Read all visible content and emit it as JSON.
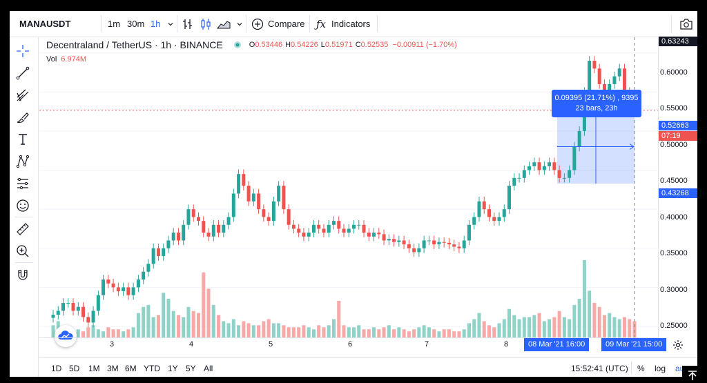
{
  "toolbar": {
    "symbol": "MANAUSDT",
    "intervals": [
      "1m",
      "30m",
      "1h"
    ],
    "active_interval": "1h",
    "compare_label": "Compare",
    "indicators_label": "Indicators",
    "icons": [
      "chevron-down-icon",
      "bar-chart-icon",
      "candles-icon",
      "area-chart-icon",
      "plus-circle-icon",
      "fx-icon",
      "camera-icon"
    ]
  },
  "legend": {
    "title": "Decentraland / TetherUS · 1h · BINANCE",
    "o_label": "O",
    "o": "0.53446",
    "h_label": "H",
    "h": "0.54226",
    "l_label": "L",
    "l": "0.51971",
    "c_label": "C",
    "c": "0.52535",
    "change": "−0.00911 (−1.70%)",
    "vol_label": "Vol",
    "vol": "6.974M"
  },
  "measure": {
    "line1": "0.09395 (21.71%) , 9395",
    "line2": "23 bars, 23h"
  },
  "price_scale": {
    "labels": [
      "0.60000",
      "0.55000",
      "0.50000",
      "0.45000",
      "0.40000",
      "0.35000",
      "0.30000",
      "0.25000"
    ],
    "top_box": "0.63243",
    "current": "0.52663",
    "countdown": "07:19",
    "range_low": "0.43268"
  },
  "time_scale": {
    "labels": [
      "3",
      "4",
      "5",
      "6",
      "7",
      "8"
    ],
    "start_box": "08 Mar '21   16:00",
    "end_box": "09 Mar '21   15:00"
  },
  "bottom_bar": {
    "ranges": [
      "1D",
      "5D",
      "1M",
      "3M",
      "6M",
      "YTD",
      "1Y",
      "5Y",
      "All"
    ],
    "clock": "15:52:41 (UTC)",
    "percent": "%",
    "log": "log",
    "auto": "auto"
  },
  "colors": {
    "up": "#26a69a",
    "down": "#ef5350",
    "accent": "#2962ff"
  },
  "chart_data": {
    "type": "candlestick",
    "x_labels": [
      "3",
      "4",
      "5",
      "6",
      "7",
      "8"
    ],
    "ylim": [
      0.22,
      0.62
    ],
    "close": [
      0.265,
      0.27,
      0.28,
      0.28,
      0.27,
      0.275,
      0.262,
      0.255,
      0.27,
      0.29,
      0.31,
      0.305,
      0.3,
      0.295,
      0.3,
      0.29,
      0.3,
      0.31,
      0.32,
      0.33,
      0.35,
      0.34,
      0.35,
      0.36,
      0.37,
      0.36,
      0.38,
      0.4,
      0.39,
      0.385,
      0.37,
      0.365,
      0.38,
      0.37,
      0.38,
      0.39,
      0.42,
      0.445,
      0.43,
      0.41,
      0.42,
      0.4,
      0.39,
      0.385,
      0.41,
      0.43,
      0.4,
      0.38,
      0.375,
      0.37,
      0.365,
      0.37,
      0.38,
      0.375,
      0.37,
      0.38,
      0.385,
      0.375,
      0.37,
      0.375,
      0.38,
      0.38,
      0.37,
      0.365,
      0.37,
      0.368,
      0.36,
      0.362,
      0.358,
      0.36,
      0.355,
      0.35,
      0.345,
      0.35,
      0.36,
      0.36,
      0.355,
      0.358,
      0.357,
      0.355,
      0.352,
      0.35,
      0.36,
      0.38,
      0.39,
      0.41,
      0.4,
      0.39,
      0.385,
      0.39,
      0.4,
      0.43,
      0.44,
      0.44,
      0.45,
      0.455,
      0.46,
      0.45,
      0.455,
      0.46,
      0.45,
      0.44,
      0.44,
      0.45,
      0.48,
      0.5,
      0.55,
      0.59,
      0.58,
      0.56,
      0.545,
      0.56,
      0.57,
      0.58,
      0.55,
      0.54,
      0.525
    ],
    "volume": [
      0.6,
      0.8,
      0.4,
      0.5,
      0.3,
      0.4,
      0.3,
      0.5,
      0.6,
      0.4,
      0.3,
      0.5,
      0.4,
      0.4,
      0.3,
      0.4,
      0.5,
      1.2,
      1.5,
      1.6,
      1.0,
      1.1,
      2.2,
      1.9,
      1.3,
      1.1,
      1.0,
      1.5,
      1.3,
      1.2,
      3.2,
      2.4,
      1.6,
      1.1,
      0.8,
      0.7,
      0.9,
      0.6,
      0.8,
      0.7,
      0.6,
      0.6,
      0.8,
      0.9,
      0.7,
      0.7,
      0.6,
      0.5,
      0.5,
      0.5,
      0.6,
      0.5,
      0.4,
      0.6,
      0.5,
      0.6,
      0.9,
      1.8,
      0.6,
      0.5,
      0.5,
      0.6,
      0.4,
      0.4,
      0.5,
      0.4,
      0.5,
      0.6,
      0.4,
      0.5,
      0.4,
      0.3,
      0.4,
      0.5,
      0.6,
      0.5,
      0.4,
      0.3,
      0.4,
      0.4,
      0.3,
      0.3,
      0.4,
      0.7,
      0.9,
      1.2,
      0.8,
      0.6,
      0.5,
      0.7,
      0.9,
      1.4,
      1.1,
      0.9,
      1.0,
      1.0,
      1.1,
      1.2,
      0.8,
      0.9,
      1.0,
      1.3,
      1.0,
      0.9,
      1.6,
      1.9,
      3.8,
      2.3,
      1.7,
      1.5,
      1.1,
      1.2,
      1.0,
      0.9,
      1.0,
      0.9,
      0.8
    ]
  }
}
